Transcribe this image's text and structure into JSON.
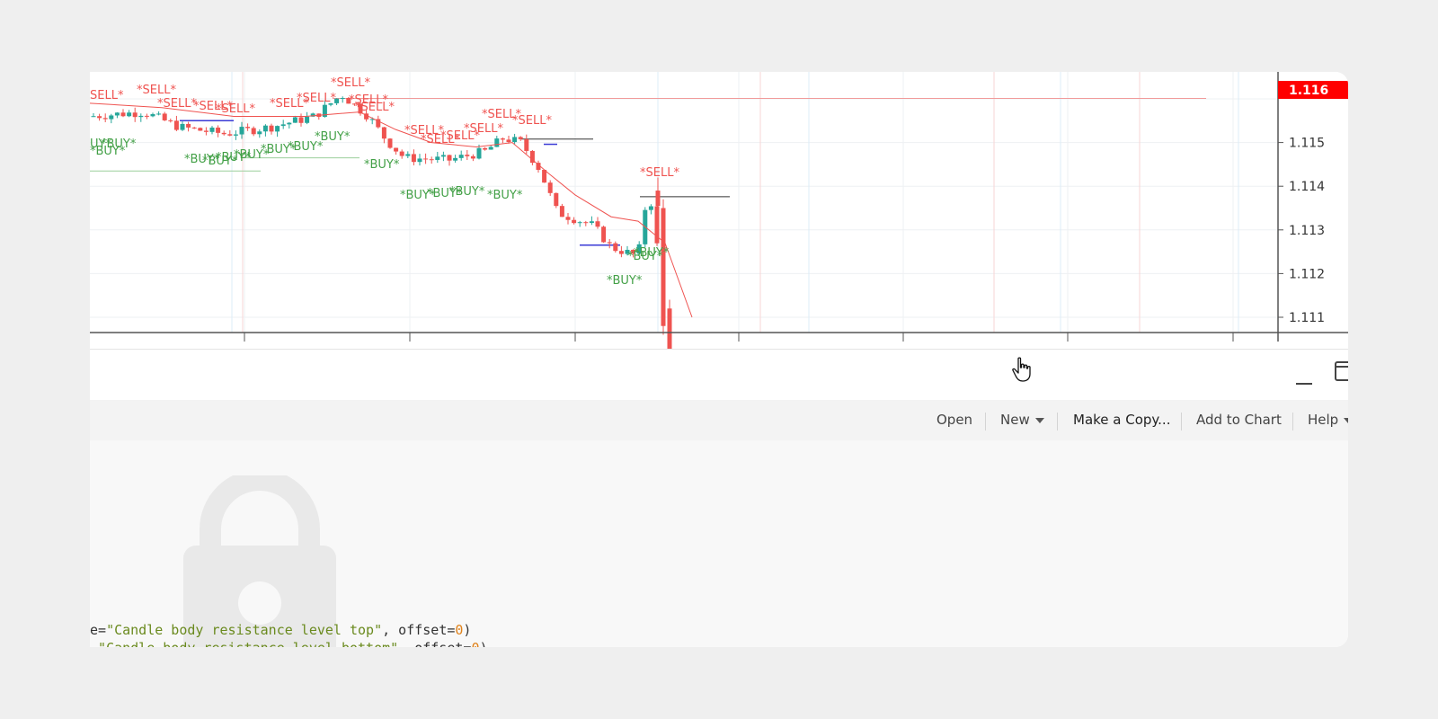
{
  "chart": {
    "price_axis": [
      "1.116",
      "1.115",
      "1.114",
      "1.113",
      "1.112",
      "1.111"
    ],
    "current_price": "1.116",
    "labels": {
      "sell": "*SELL*",
      "buy": "*BUY*",
      "sell_fragment": "SELL*",
      "buy_fragment": "UY*",
      "buy_fragment_left": "*BUY*"
    },
    "colors": {
      "bull": "#26a69a",
      "bear": "#ef5350",
      "sell_label": "#ef5350",
      "buy_label": "#43a047",
      "price_tag": "#ff0000"
    }
  },
  "toolbar": {
    "open_label": "Open",
    "new_label": "New",
    "copy_label": "Make a Copy...",
    "add_label": "Add to Chart",
    "help_label": "Help"
  },
  "editor": {
    "line1": {
      "prefix": "e=",
      "string": "\"Candle body resistance level top\"",
      "mid": ", offset=",
      "number": "0",
      "suffix": ")"
    },
    "line2": {
      "prefix": ".",
      "string": "\"Candle body resistance level bottom\"",
      "mid": ", offset=",
      "number": "0",
      "suffix": ")"
    }
  }
}
